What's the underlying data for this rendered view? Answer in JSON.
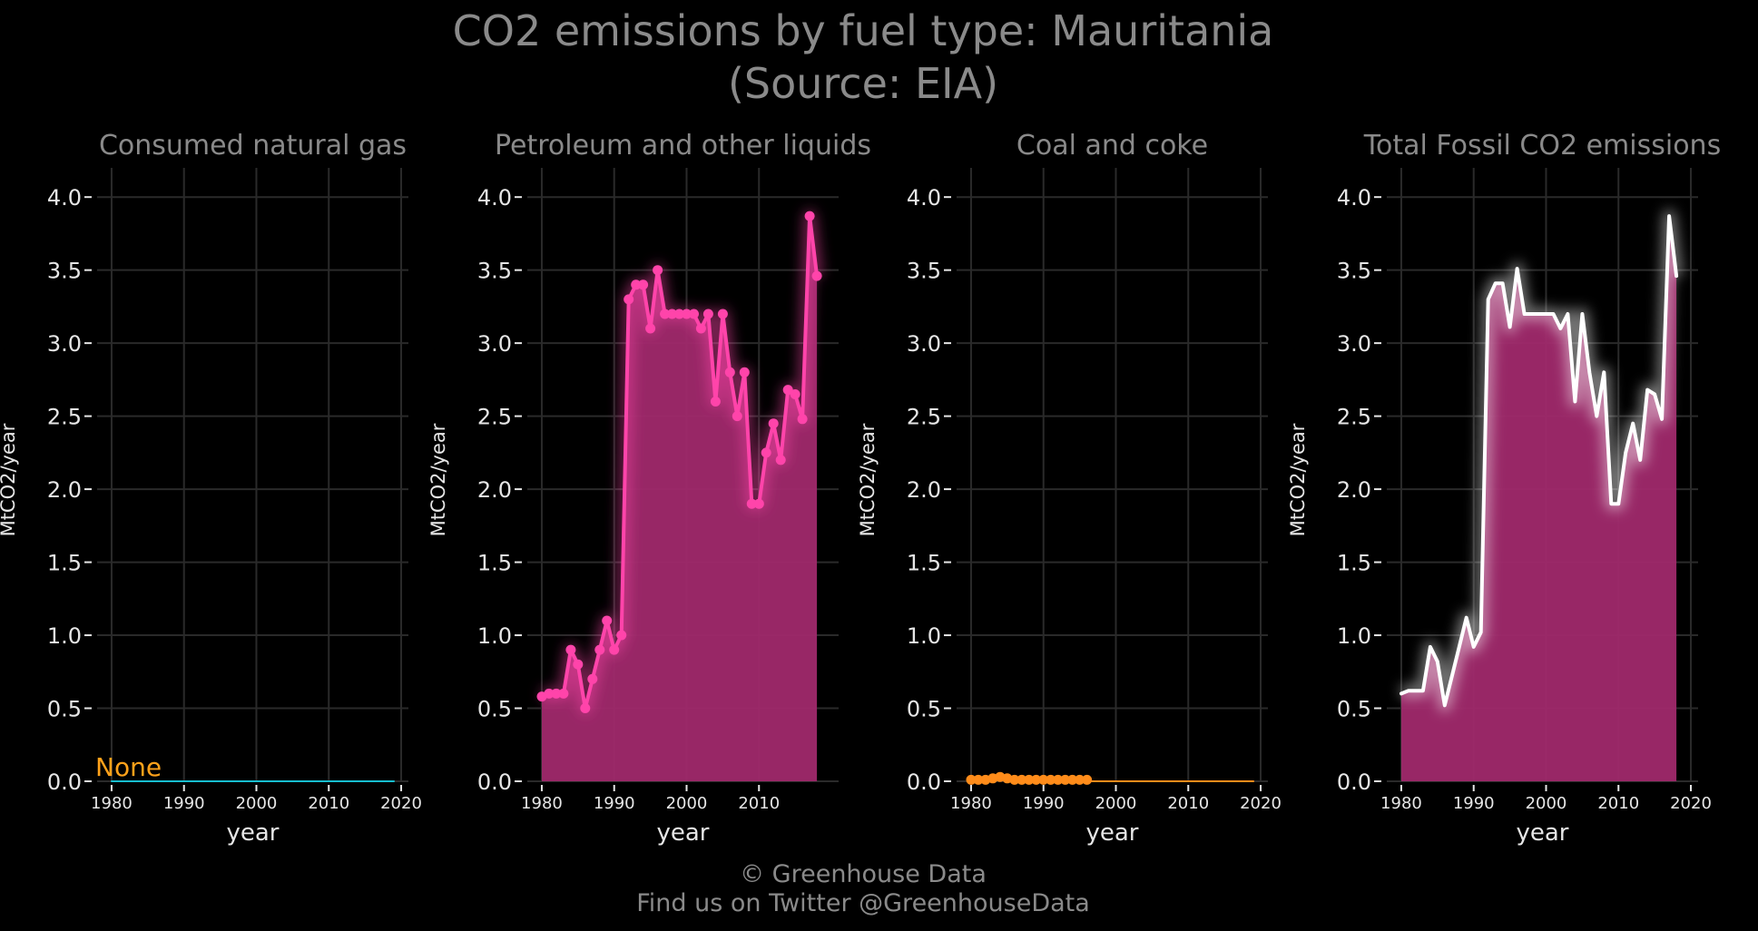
{
  "title_line1": "CO2 emissions by fuel type: Mauritania",
  "title_line2": "(Source: EIA)",
  "footer_line1": "© Greenhouse Data",
  "footer_line2": "Find us on Twitter @GreenhouseData",
  "colors": {
    "background": "#000000",
    "natural_gas": "#17becf",
    "petroleum": "#ff44aa",
    "petroleum_fill": "#a0296b",
    "coal": "#ff8c1a",
    "total": "#ffffff",
    "total_fill": "#a0296b",
    "none_label": "#ffa21a"
  },
  "chart_data": [
    {
      "type": "line",
      "title": "Consumed natural gas",
      "xlabel": "year",
      "ylabel": "MtCO2/year",
      "xlim": [
        1978,
        2021
      ],
      "ylim": [
        0,
        4.2
      ],
      "xticks": [
        1980,
        1990,
        2000,
        2010,
        2020
      ],
      "yticks": [
        "0.0",
        "0.5",
        "1.0",
        "1.5",
        "2.0",
        "2.5",
        "3.0",
        "3.5",
        "4.0"
      ],
      "grid": true,
      "annotation": "None",
      "series": [
        {
          "x": [
            1980,
            2019
          ],
          "y": [
            0,
            0
          ],
          "color": "#17becf",
          "markers": false,
          "fill": false
        }
      ]
    },
    {
      "type": "area",
      "title": "Petroleum and other liquids",
      "xlabel": "year",
      "ylabel": "MtCO2/year",
      "xlim": [
        1978,
        2021
      ],
      "ylim": [
        0,
        4.2
      ],
      "xticks": [
        1980,
        1990,
        2000,
        2010
      ],
      "yticks": [
        "0.0",
        "0.5",
        "1.0",
        "1.5",
        "2.0",
        "2.5",
        "3.0",
        "3.5",
        "4.0"
      ],
      "grid": true,
      "series": [
        {
          "x": [
            1980,
            1981,
            1982,
            1983,
            1984,
            1985,
            1986,
            1987,
            1988,
            1989,
            1990,
            1991,
            1992,
            1993,
            1994,
            1995,
            1996,
            1997,
            1998,
            1999,
            2000,
            2001,
            2002,
            2003,
            2004,
            2005,
            2006,
            2007,
            2008,
            2009,
            2010,
            2011,
            2012,
            2013,
            2014,
            2015,
            2016,
            2017,
            2018
          ],
          "y": [
            0.58,
            0.6,
            0.6,
            0.6,
            0.9,
            0.8,
            0.5,
            0.7,
            0.9,
            1.1,
            0.9,
            1.0,
            3.3,
            3.4,
            3.4,
            3.1,
            3.5,
            3.2,
            3.2,
            3.2,
            3.2,
            3.2,
            3.1,
            3.2,
            2.6,
            3.2,
            2.8,
            2.5,
            2.8,
            1.9,
            1.9,
            2.25,
            2.45,
            2.2,
            2.68,
            2.65,
            2.48,
            3.87,
            3.46
          ],
          "color": "#ff44aa",
          "markers": true,
          "fill": true
        }
      ]
    },
    {
      "type": "line",
      "title": "Coal and coke",
      "xlabel": "year",
      "ylabel": "MtCO2/year",
      "xlim": [
        1978,
        2021
      ],
      "ylim": [
        0,
        4.2
      ],
      "xticks": [
        1980,
        1990,
        2000,
        2010,
        2020
      ],
      "yticks": [
        "0.0",
        "0.5",
        "1.0",
        "1.5",
        "2.0",
        "2.5",
        "3.0",
        "3.5",
        "4.0"
      ],
      "grid": true,
      "series": [
        {
          "x": [
            1980,
            1981,
            1982,
            1983,
            1984,
            1985,
            1986,
            1987,
            1988,
            1989,
            1990,
            1991,
            1992,
            1993,
            1994,
            1995,
            1996
          ],
          "y": [
            0.01,
            0.01,
            0.01,
            0.02,
            0.03,
            0.02,
            0.01,
            0.01,
            0.01,
            0.01,
            0.01,
            0.01,
            0.01,
            0.01,
            0.01,
            0.01,
            0.01
          ],
          "color": "#ff8c1a",
          "markers": true,
          "fill": false
        },
        {
          "x": [
            1996,
            2019
          ],
          "y": [
            0,
            0
          ],
          "color": "#ff8c1a",
          "markers": false,
          "fill": false
        }
      ]
    },
    {
      "type": "area",
      "title": "Total Fossil CO2 emissions",
      "xlabel": "year",
      "ylabel": "MtCO2/year",
      "xlim": [
        1978,
        2021
      ],
      "ylim": [
        0,
        4.2
      ],
      "xticks": [
        1980,
        1990,
        2000,
        2010,
        2020
      ],
      "yticks": [
        "0.0",
        "0.5",
        "1.0",
        "1.5",
        "2.0",
        "2.5",
        "3.0",
        "3.5",
        "4.0"
      ],
      "grid": true,
      "series": [
        {
          "x": [
            1980,
            1981,
            1982,
            1983,
            1984,
            1985,
            1986,
            1987,
            1988,
            1989,
            1990,
            1991,
            1992,
            1993,
            1994,
            1995,
            1996,
            1997,
            1998,
            1999,
            2000,
            2001,
            2002,
            2003,
            2004,
            2005,
            2006,
            2007,
            2008,
            2009,
            2010,
            2011,
            2012,
            2013,
            2014,
            2015,
            2016,
            2017,
            2018
          ],
          "y": [
            0.6,
            0.62,
            0.62,
            0.62,
            0.92,
            0.82,
            0.52,
            0.72,
            0.92,
            1.12,
            0.92,
            1.02,
            3.3,
            3.41,
            3.41,
            3.11,
            3.51,
            3.2,
            3.2,
            3.2,
            3.2,
            3.2,
            3.1,
            3.2,
            2.6,
            3.2,
            2.8,
            2.5,
            2.8,
            1.9,
            1.9,
            2.25,
            2.45,
            2.2,
            2.68,
            2.65,
            2.48,
            3.87,
            3.46
          ],
          "color": "#ffffff",
          "markers": false,
          "fill": true
        }
      ]
    }
  ]
}
